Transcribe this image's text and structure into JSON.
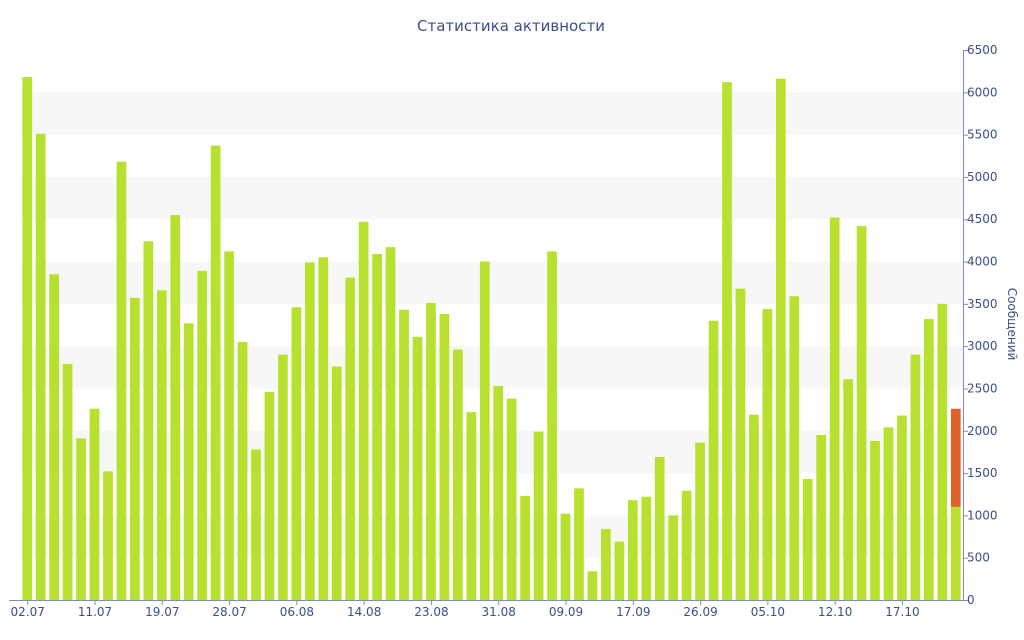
{
  "chart_data": {
    "type": "bar",
    "title": "Статистика активности",
    "xlabel": "",
    "ylabel": "Сообщений",
    "ylim": [
      0,
      6500
    ],
    "y_ticks": [
      0,
      500,
      1000,
      1500,
      2000,
      2500,
      3000,
      3500,
      4000,
      4500,
      5000,
      5500,
      6000,
      6500
    ],
    "y_axis_side": "right",
    "grid": "alternating horizontal bands",
    "x_tick_labels": [
      {
        "index": 0,
        "label": "02.07"
      },
      {
        "index": 5,
        "label": "11.07"
      },
      {
        "index": 10,
        "label": "19.07"
      },
      {
        "index": 15,
        "label": "28.07"
      },
      {
        "index": 20,
        "label": "06.08"
      },
      {
        "index": 25,
        "label": "14.08"
      },
      {
        "index": 30,
        "label": "23.08"
      },
      {
        "index": 35,
        "label": "31.08"
      },
      {
        "index": 40,
        "label": "09.09"
      },
      {
        "index": 45,
        "label": "17.09"
      },
      {
        "index": 50,
        "label": "26.09"
      },
      {
        "index": 55,
        "label": "05.10"
      },
      {
        "index": 60,
        "label": "12.10"
      },
      {
        "index": 65,
        "label": "17.10"
      }
    ],
    "colors": {
      "bar": "#b8e02e",
      "highlight": "#e0622b",
      "text": "#3b4f8a",
      "axis": "#7f8fb0",
      "band": "#f7f7f7"
    },
    "series": [
      {
        "values": [
          6180,
          5510,
          3850,
          2790,
          1910,
          2260,
          1520,
          5180,
          3570,
          4240,
          3660,
          4550,
          3270,
          3890,
          5370,
          4120,
          3050,
          1780,
          2460,
          2900,
          3460,
          3990,
          4050,
          2760,
          3810,
          4470,
          4090,
          4170,
          3430,
          3110,
          3510,
          3380,
          2960,
          2220,
          4000,
          2530,
          2380,
          1230,
          1990,
          4120,
          1020,
          1320,
          340,
          840,
          690,
          1180,
          1220,
          1690,
          1000,
          1290,
          1860,
          3300,
          6120,
          3680,
          2190,
          3440,
          6160,
          3590,
          1430,
          1950,
          4520,
          2610,
          4420,
          1880,
          2040,
          2180,
          2900,
          3320,
          3500,
          1100
        ]
      },
      {
        "values": [
          0,
          0,
          0,
          0,
          0,
          0,
          0,
          0,
          0,
          0,
          0,
          0,
          0,
          0,
          0,
          0,
          0,
          0,
          0,
          0,
          0,
          0,
          0,
          0,
          0,
          0,
          0,
          0,
          0,
          0,
          0,
          0,
          0,
          0,
          0,
          0,
          0,
          0,
          0,
          0,
          0,
          0,
          0,
          0,
          0,
          0,
          0,
          0,
          0,
          0,
          0,
          0,
          0,
          0,
          0,
          0,
          0,
          0,
          0,
          0,
          0,
          0,
          0,
          0,
          0,
          0,
          0,
          0,
          0,
          1160
        ]
      }
    ]
  }
}
